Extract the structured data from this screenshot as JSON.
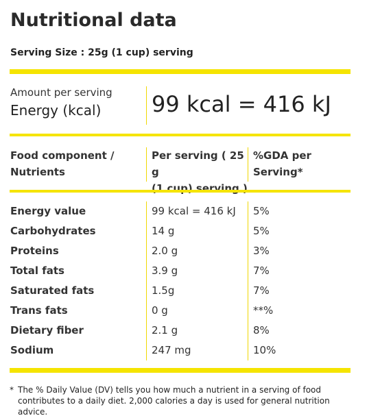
{
  "title": "Nutritional data",
  "serving_size": "Serving Size : 25g (1 cup) serving",
  "energy": {
    "amount_label": "Amount per serving",
    "label": "Energy (kcal)",
    "value": "99 kcal = 416 kJ"
  },
  "table": {
    "headers": {
      "col1": [
        "Food component /",
        "Nutrients"
      ],
      "col2": [
        "Per serving ( 25 g",
        "(1 cup) serving )"
      ],
      "col3": [
        "%GDA per",
        "Serving*"
      ]
    },
    "rows": [
      {
        "name": "Energy value",
        "per_serving": "99 kcal = 416 kJ",
        "gda": "5%"
      },
      {
        "name": "Carbohydrates",
        "per_serving": "14 g",
        "gda": "5%"
      },
      {
        "name": "Proteins",
        "per_serving": "2.0 g",
        "gda": "3%"
      },
      {
        "name": "Total fats",
        "per_serving": "3.9 g",
        "gda": "7%"
      },
      {
        "name": "Saturated fats",
        "per_serving": "1.5g",
        "gda": "7%"
      },
      {
        "name": "Trans fats",
        "per_serving": "0 g",
        "gda": "**%"
      },
      {
        "name": "Dietary fiber",
        "per_serving": "2.1 g",
        "gda": "8%"
      },
      {
        "name": "Sodium",
        "per_serving": "247 mg",
        "gda": "10%"
      }
    ]
  },
  "footnote": {
    "marker": "*",
    "text": "The % Daily Value (DV) tells you how much a nutrient in a serving of food contributes to a daily diet. 2,000 calories a day is used for general nutrition advice."
  },
  "colors": {
    "accent_yellow": "#f5e400"
  }
}
